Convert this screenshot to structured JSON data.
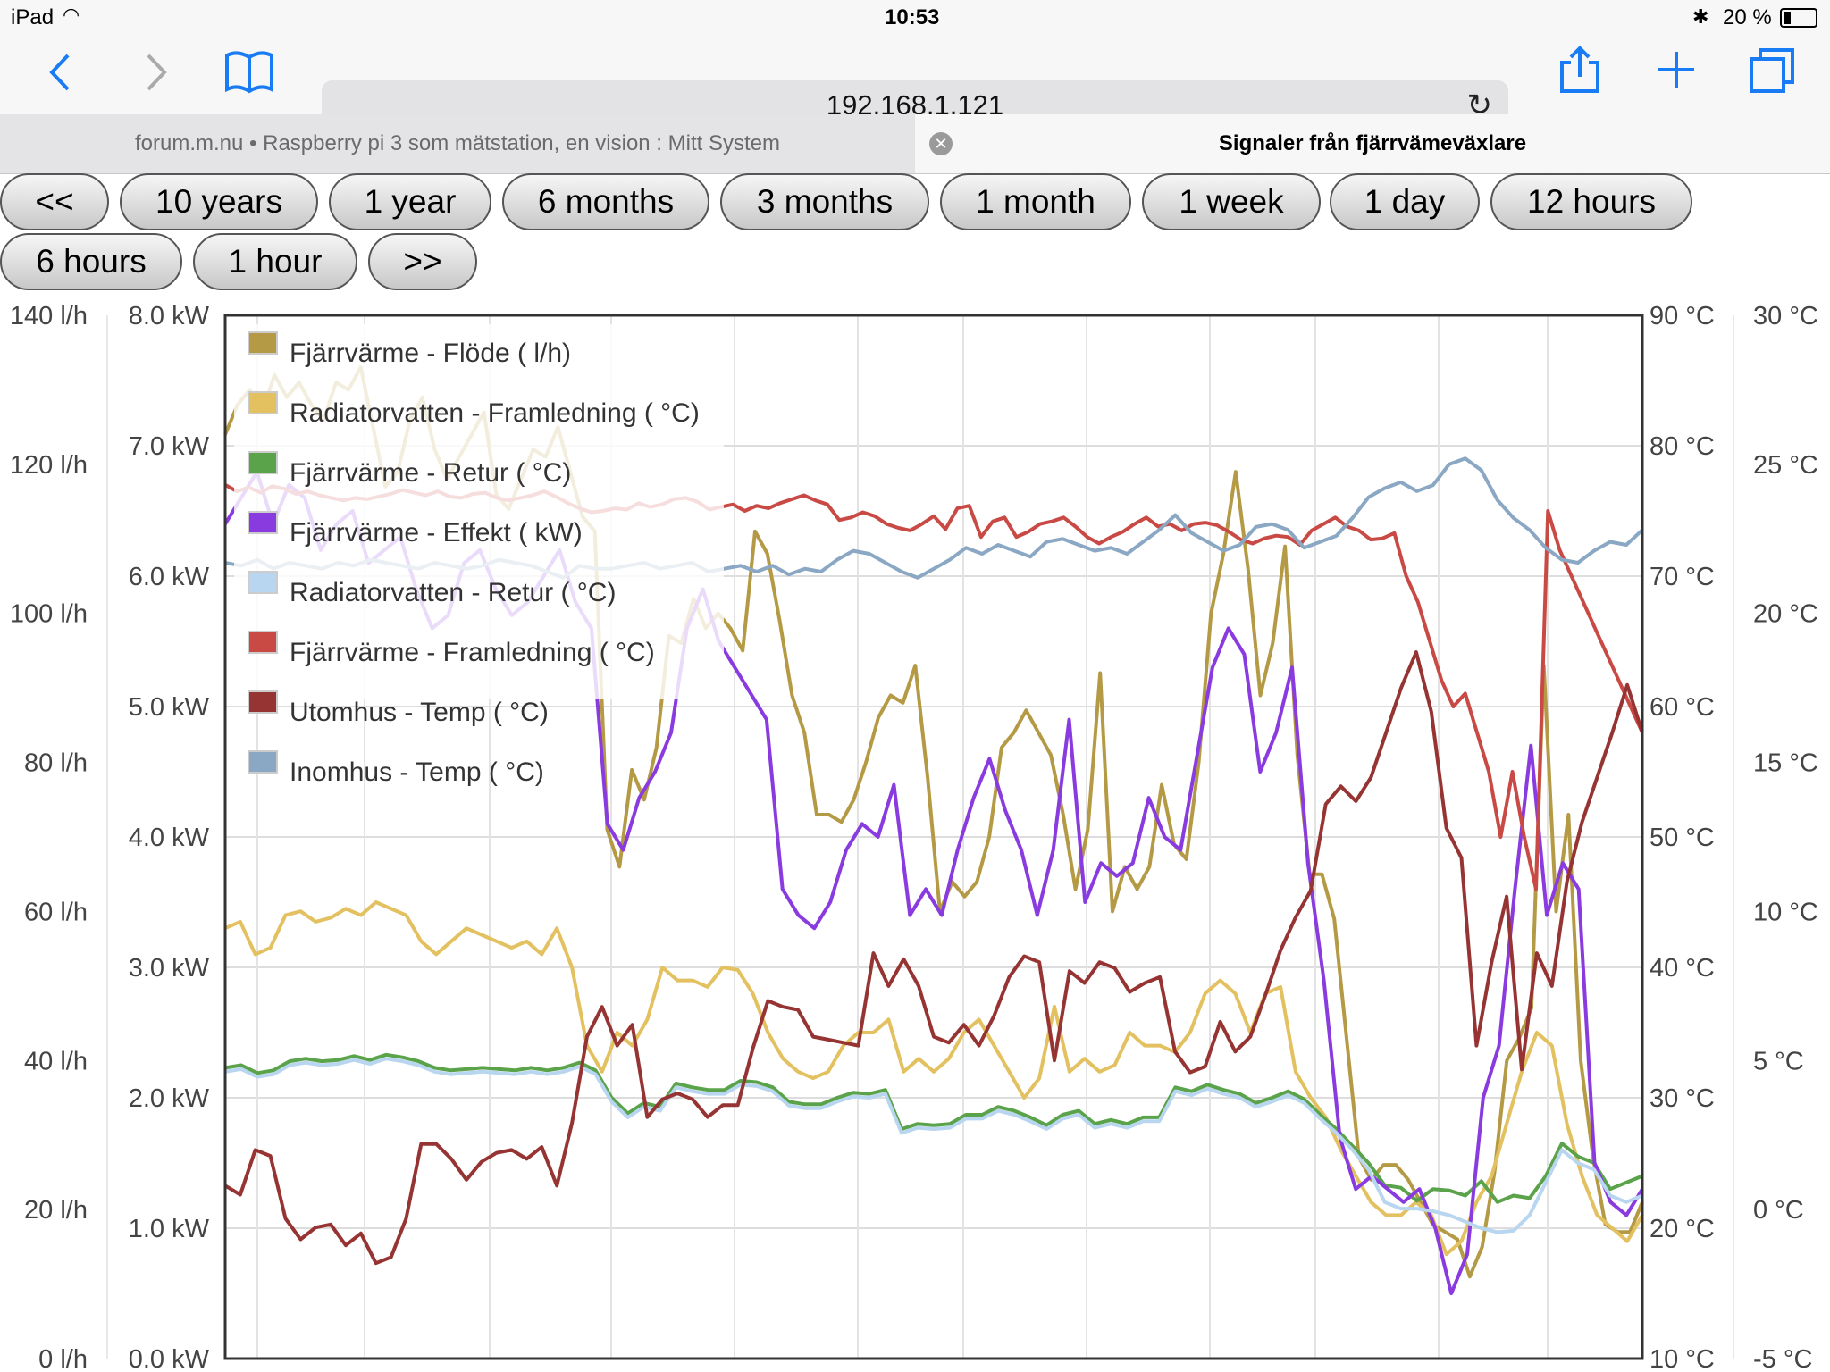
{
  "status_bar": {
    "device": "iPad",
    "time": "10:53",
    "battery": "20 %"
  },
  "browser": {
    "url": "192.168.1.121",
    "tabs": [
      {
        "title": "forum.m.nu • Raspberry pi 3 som mätstation, en vision : Mitt System",
        "active": false
      },
      {
        "title": "Signaler från fjärrvämeväxlare",
        "active": true
      }
    ],
    "icons": [
      "back-icon",
      "forward-icon",
      "bookmarks-icon",
      "reload-icon",
      "share-icon",
      "add-tab-icon",
      "tabs-icon",
      "close-tab-icon"
    ]
  },
  "range_buttons": [
    "<<",
    "10 years",
    "1 year",
    "6 months",
    "3 months",
    "1 month",
    "1 week",
    "1 day",
    "12 hours",
    "6 hours",
    "1 hour",
    ">>"
  ],
  "chart_data": {
    "type": "line",
    "axes": {
      "flow": {
        "ticks": [
          "140 l/h",
          "120 l/h",
          "100 l/h",
          "80 l/h",
          "60 l/h",
          "40 l/h",
          "20 l/h",
          "0 l/h"
        ],
        "range": [
          0,
          140
        ]
      },
      "power": {
        "ticks": [
          "8.0 kW",
          "7.0 kW",
          "6.0 kW",
          "5.0 kW",
          "4.0 kW",
          "3.0 kW",
          "2.0 kW",
          "1.0 kW",
          "0.0 kW"
        ],
        "range": [
          0,
          8
        ]
      },
      "temp_hi": {
        "ticks": [
          "90 °C",
          "80 °C",
          "70 °C",
          "60 °C",
          "50 °C",
          "40 °C",
          "30 °C",
          "20 °C",
          "10 °C"
        ],
        "range": [
          10,
          90
        ]
      },
      "temp_lo": {
        "ticks": [
          "30 °C",
          "25 °C",
          "20 °C",
          "15 °C",
          "10 °C",
          "5 °C",
          "0 °C",
          "-5 °C"
        ],
        "range": [
          -5,
          30
        ]
      }
    },
    "grid": true,
    "legend_position": "top-left",
    "series": [
      {
        "name": "Fjärrvärme - Flöde ( l/h)",
        "color": "#b59a45",
        "axis": "flow",
        "values": [
          124,
          128,
          130,
          127,
          132,
          129,
          131,
          128,
          126,
          131,
          130,
          133,
          125,
          117,
          119,
          126,
          129,
          122,
          118,
          121,
          124,
          127,
          116,
          114,
          118,
          122,
          121,
          125,
          119,
          113,
          111,
          71,
          66,
          79,
          75,
          82,
          97,
          96,
          102,
          98,
          100,
          98,
          95,
          111,
          108,
          99,
          89,
          84,
          73,
          73,
          72,
          75,
          80,
          86,
          89,
          88,
          93,
          78,
          60,
          64,
          62,
          64,
          70,
          82,
          84,
          87,
          84,
          81,
          73,
          63,
          71,
          92,
          60,
          66,
          63,
          66,
          77,
          69,
          67,
          80,
          100,
          108,
          119,
          106,
          89,
          96,
          109,
          81,
          65,
          65,
          59,
          43,
          27,
          24,
          26,
          26,
          24,
          21,
          18,
          17,
          16,
          11,
          15,
          25,
          40,
          43,
          47,
          93,
          60,
          73,
          40,
          27,
          18,
          17,
          17,
          21
        ]
      },
      {
        "name": "Radiatorvatten - Framledning ( °C)",
        "color": "#e3c160",
        "axis": "temp_hi",
        "values": [
          43,
          43.5,
          41,
          41.5,
          44,
          44.3,
          43.5,
          43.8,
          44.5,
          44,
          45,
          44.5,
          44,
          42,
          41,
          42,
          43,
          42.5,
          42,
          41.5,
          42,
          41,
          43,
          40,
          34,
          32,
          35,
          34,
          36,
          40,
          39,
          39,
          38.5,
          40,
          39.8,
          38,
          35,
          33,
          32,
          31.5,
          32,
          34,
          35,
          35,
          36,
          32,
          33,
          32,
          33,
          35,
          36,
          34,
          32,
          30,
          31.5,
          37,
          32,
          33,
          32,
          32.5,
          35,
          34,
          34,
          33.5,
          35,
          38,
          39,
          38,
          35,
          38,
          38.5,
          32,
          30,
          28.5,
          26,
          24,
          22,
          21,
          21,
          22,
          21,
          18,
          19,
          22,
          24,
          28,
          32,
          35,
          34,
          28,
          24,
          21,
          20,
          19,
          21
        ]
      },
      {
        "name": "Fjärrvärme - Retur ( °C)",
        "color": "#5aa34a",
        "axis": "temp_hi",
        "values": [
          32.3,
          32.5,
          31.9,
          32.1,
          32.8,
          33,
          32.8,
          32.9,
          33.2,
          32.9,
          33.3,
          33.1,
          32.8,
          32.3,
          32.1,
          32.2,
          32.3,
          32.2,
          32.1,
          32.3,
          32.1,
          32.3,
          32.7,
          32.1,
          30,
          28.8,
          29.6,
          29.3,
          31.1,
          30.8,
          30.6,
          30.6,
          31.3,
          31.2,
          30.8,
          29.7,
          29.5,
          29.5,
          30,
          30.4,
          30.3,
          30.6,
          27.6,
          28,
          27.9,
          28,
          28.7,
          28.7,
          29.3,
          29,
          28.5,
          27.9,
          28.7,
          29,
          28,
          28.3,
          28,
          28.5,
          28.5,
          30.8,
          30.5,
          31,
          30.6,
          30.3,
          29.6,
          30,
          30.5,
          29.9,
          28.7,
          27.6,
          26.3,
          25,
          23.3,
          23.1,
          22.1,
          23,
          22.9,
          22.5,
          23.6,
          22,
          22.5,
          22.3,
          24,
          26.5,
          25.5,
          25,
          23,
          23.5,
          24
        ]
      },
      {
        "name": "Fjärrvärme - Effekt ( kW)",
        "color": "#8a3be0",
        "axis": "power",
        "values": [
          6.4,
          6.6,
          6.8,
          6.4,
          6.7,
          6.6,
          6.2,
          6.4,
          6.5,
          6.1,
          6.2,
          6.3,
          5.9,
          5.6,
          5.7,
          6.1,
          6.2,
          5.9,
          5.7,
          5.8,
          6.0,
          6.2,
          5.8,
          5.6,
          4.1,
          3.9,
          4.3,
          4.5,
          4.8,
          5.6,
          5.9,
          5.5,
          5.3,
          5.1,
          4.9,
          3.6,
          3.4,
          3.3,
          3.5,
          3.9,
          4.1,
          4.0,
          4.4,
          3.4,
          3.6,
          3.4,
          3.9,
          4.3,
          4.6,
          4.2,
          3.9,
          3.4,
          3.9,
          4.9,
          3.5,
          3.8,
          3.7,
          3.8,
          4.3,
          4.0,
          3.9,
          4.6,
          5.3,
          5.6,
          5.4,
          4.5,
          4.8,
          5.3,
          3.8,
          2.9,
          1.7,
          1.3,
          1.4,
          1.3,
          1.2,
          1.3,
          1.0,
          0.5,
          0.8,
          2.0,
          2.4,
          3.6,
          4.7,
          3.4,
          3.8,
          3.6,
          1.5,
          1.2,
          1.1,
          1.3
        ]
      },
      {
        "name": "Radiatorvatten - Retur ( °C)",
        "color": "#b8d6f0",
        "axis": "temp_hi",
        "values": [
          32,
          32.2,
          31.6,
          31.8,
          32.5,
          32.7,
          32.5,
          32.6,
          32.9,
          32.6,
          33,
          32.8,
          32.5,
          32,
          31.8,
          31.9,
          32,
          31.9,
          31.8,
          32,
          31.8,
          32,
          32.4,
          31.8,
          29.7,
          28.5,
          29.3,
          29,
          30.8,
          30.5,
          30.3,
          30.3,
          31,
          30.9,
          30.5,
          29.4,
          29.2,
          29.2,
          29.7,
          30.1,
          30,
          30.3,
          27.3,
          27.7,
          27.6,
          27.7,
          28.4,
          28.4,
          29,
          28.7,
          28.2,
          27.6,
          28.4,
          28.7,
          27.7,
          28,
          27.7,
          28.2,
          28.2,
          30.5,
          30.2,
          30.7,
          30.3,
          30,
          29.3,
          29.7,
          30.2,
          29.6,
          28.4,
          27.3,
          26,
          24.5,
          22,
          21.5,
          21.5,
          21.3,
          21,
          20.5,
          20,
          19.7,
          19.8,
          21,
          23.5,
          26,
          25,
          24.5,
          22.5,
          22,
          22.5
        ]
      },
      {
        "name": "Fjärrvärme - Framledning ( °C)",
        "color": "#c94a45",
        "axis": "temp_hi",
        "values": [
          77,
          76.5,
          76.8,
          76.4,
          76.9,
          76.7,
          76.3,
          76.5,
          76.2,
          76,
          75.8,
          76,
          75.9,
          76.1,
          76.3,
          76.6,
          76.4,
          76.2,
          76.5,
          76.1,
          76,
          76.3,
          76.4,
          76,
          75.8,
          76,
          76.2,
          76.5,
          76.1,
          75.6,
          75.2,
          74.9,
          75,
          75.2,
          75.1,
          75.6,
          75.3,
          75.5,
          75.9,
          76,
          75.7,
          75.1,
          75.3,
          75.5,
          75,
          75.4,
          75.2,
          75.6,
          75.9,
          76.2,
          75.8,
          75.5,
          74.3,
          74.5,
          74.9,
          74.6,
          74,
          73.7,
          73.5,
          74,
          74.6,
          73.6,
          75.2,
          75.4,
          73,
          74.2,
          74.5,
          73,
          73.4,
          74,
          74.2,
          74.5,
          73.8,
          73,
          72.5,
          73,
          73.4,
          74,
          74.5,
          73.8,
          74,
          73.5,
          74,
          74.1,
          73.9,
          73.4,
          72.8,
          72.5,
          72.9,
          73.1,
          73,
          72.4,
          73.5,
          74,
          74.5,
          73.8,
          73.5,
          72.8,
          72.9,
          73.3,
          70,
          68,
          65,
          62,
          60,
          61,
          58,
          55,
          50,
          55,
          50,
          46,
          75,
          72,
          70,
          68,
          66,
          64,
          62,
          60,
          58
        ]
      },
      {
        "name": "Utomhus - Temp ( °C)",
        "color": "#963433",
        "axis": "temp_lo",
        "values": [
          0.8,
          0.5,
          2,
          1.8,
          -0.3,
          -1,
          -0.6,
          -0.5,
          -1.2,
          -0.8,
          -1.8,
          -1.6,
          -0.3,
          2.2,
          2.2,
          1.7,
          1,
          1.6,
          1.9,
          2,
          1.7,
          2.1,
          0.8,
          2.9,
          5.8,
          6.8,
          5.5,
          6.2,
          3.1,
          3.7,
          3.9,
          3.7,
          3.1,
          3.5,
          3.5,
          5.4,
          7,
          6.8,
          6.7,
          5.8,
          5.7,
          5.6,
          5.5,
          8.6,
          7.5,
          8.4,
          7.5,
          5.8,
          5.6,
          6.2,
          5.5,
          6.5,
          7.8,
          8.5,
          8.3,
          5,
          8,
          7.6,
          8.3,
          8.1,
          7.3,
          7.6,
          7.8,
          5.3,
          4.6,
          4.8,
          6.3,
          5.3,
          5.8,
          7.2,
          8.7,
          9.8,
          10.7,
          13.6,
          14.2,
          13.7,
          14.5,
          16,
          17.5,
          18.7,
          16.7,
          12.8,
          11.8,
          5.5,
          8.3,
          10.5,
          4.7,
          8.6,
          7.5,
          11,
          13,
          14.5,
          16,
          17.6,
          16
        ]
      },
      {
        "name": "Inomhus - Temp ( °C)",
        "color": "#8aa7c4",
        "axis": "temp_lo",
        "values": [
          21.7,
          21.6,
          21.8,
          21.5,
          21.7,
          21.6,
          21.5,
          21.7,
          21.6,
          21.8,
          21.7,
          21.6,
          21.5,
          21.7,
          21.6,
          21.5,
          21.6,
          21.8,
          21.7,
          21.6,
          21.4,
          21.2,
          21.6,
          21.5,
          21.5,
          21.6,
          21.7,
          21.5,
          21.6,
          21.7,
          21.4,
          21.5,
          21.6,
          21.4,
          21.6,
          21.3,
          21.5,
          21.4,
          21.8,
          22.1,
          22,
          21.7,
          21.4,
          21.2,
          21.5,
          21.8,
          22.2,
          22,
          22.3,
          22.1,
          21.9,
          22.4,
          22.5,
          22.3,
          22.1,
          22.2,
          22,
          22.4,
          22.8,
          23.3,
          22.7,
          22.4,
          22.1,
          22.3,
          22.9,
          23,
          22.8,
          22.2,
          22.4,
          22.6,
          23.2,
          23.9,
          24.2,
          24.4,
          24.1,
          24.3,
          25,
          25.2,
          24.8,
          23.8,
          23.2,
          22.8,
          22.2,
          21.8,
          21.7,
          22.1,
          22.4,
          22.3,
          22.8
        ]
      }
    ]
  }
}
